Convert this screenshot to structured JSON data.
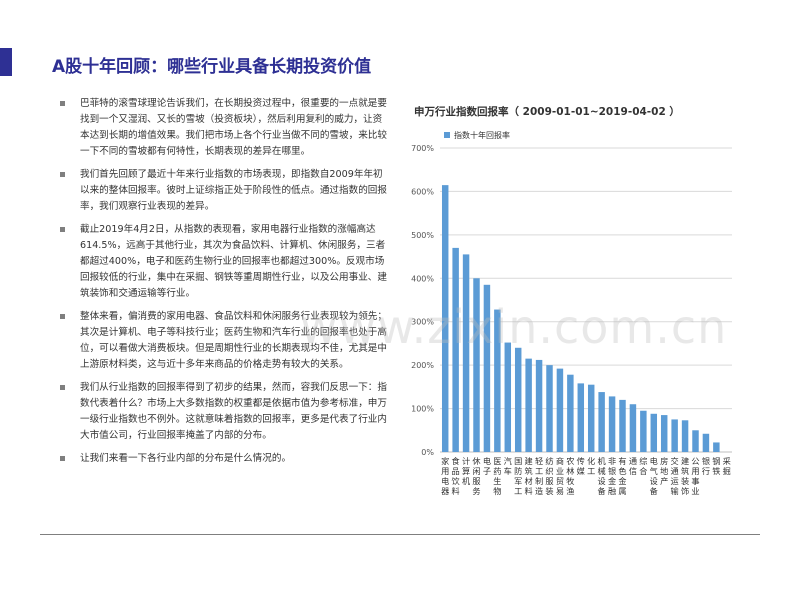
{
  "page": {
    "title": "A股十年回顾：哪些行业具备长期投资价值",
    "watermark": "www.zixin.com.cn"
  },
  "bullets": [
    "巴菲特的滚雪球理论告诉我们，在长期投资过程中，很重要的一点就是要找到一个又湿润、又长的雪坡（投资板块），然后利用复利的威力，让资本达到长期的增值效果。我们把市场上各个行业当做不同的雪坡，来比较一下不同的雪坡都有何特性，长期表现的差异在哪里。",
    "我们首先回顾了最近十年来行业指数的市场表现，即指数自2009年年初以来的整体回报率。彼时上证综指正处于阶段性的低点。通过指数的回报率，我们观察行业表现的差异。",
    "截止2019年4月2日，从指数的表现看，家用电器行业指数的涨幅高达614.5%，远高于其他行业，其次为食品饮料、计算机、休闲服务，三者都超过400%，电子和医药生物行业的回报率也都超过300%。反观市场回报较低的行业，集中在采掘、钢铁等重周期性行业，以及公用事业、建筑装饰和交通运输等行业。",
    "整体来看，偏消费的家用电器、食品饮料和休闲服务行业表现较为领先；其次是计算机、电子等科技行业；医药生物和汽车行业的回报率也处于高位，可以看做大消费板块。但是周期性行业的长期表现均不佳，尤其是中上游原材料类，这与近十多年来商品的价格走势有较大的关系。",
    "我们从行业指数的回报率得到了初步的结果，然而，容我们反思一下：指数代表着什么？市场上大多数指数的权重都是依据市值为参考标准，申万一级行业指数也不例外。这就意味着指数的回报率，更多是代表了行业内大市值公司，行业回报率掩盖了内部的分布。",
    "让我们来看一下各行业内部的分布是什么情况的。"
  ],
  "chart_data": {
    "type": "bar",
    "title": "申万行业指数回报率（ 2009-01-01~2019-04-02 ）",
    "legend": "指数十年回报率",
    "legend_position": "top-left",
    "ylim": [
      0,
      700
    ],
    "yticks": [
      "0%",
      "100%",
      "200%",
      "300%",
      "400%",
      "500%",
      "600%",
      "700%"
    ],
    "grid": true,
    "color": "#5b9bd5",
    "categories": [
      "家用电器",
      "食品饮料",
      "计算机",
      "休闲服务",
      "电子",
      "医药生物",
      "汽车",
      "国防军工",
      "建筑材料",
      "轻工制造",
      "纺织服装",
      "商业贸易",
      "农林牧渔",
      "传媒",
      "化工",
      "机械设备",
      "非银金融",
      "有色金属",
      "通信",
      "综合",
      "电气设备",
      "房地产",
      "交通运输",
      "建筑装饰",
      "公用事业",
      "银行",
      "钢铁",
      "采掘"
    ],
    "values": [
      614.5,
      470,
      455,
      400,
      385,
      328,
      252,
      240,
      215,
      212,
      200,
      192,
      178,
      158,
      155,
      138,
      128,
      120,
      110,
      95,
      88,
      85,
      75,
      73,
      50,
      42,
      22,
      0
    ]
  }
}
